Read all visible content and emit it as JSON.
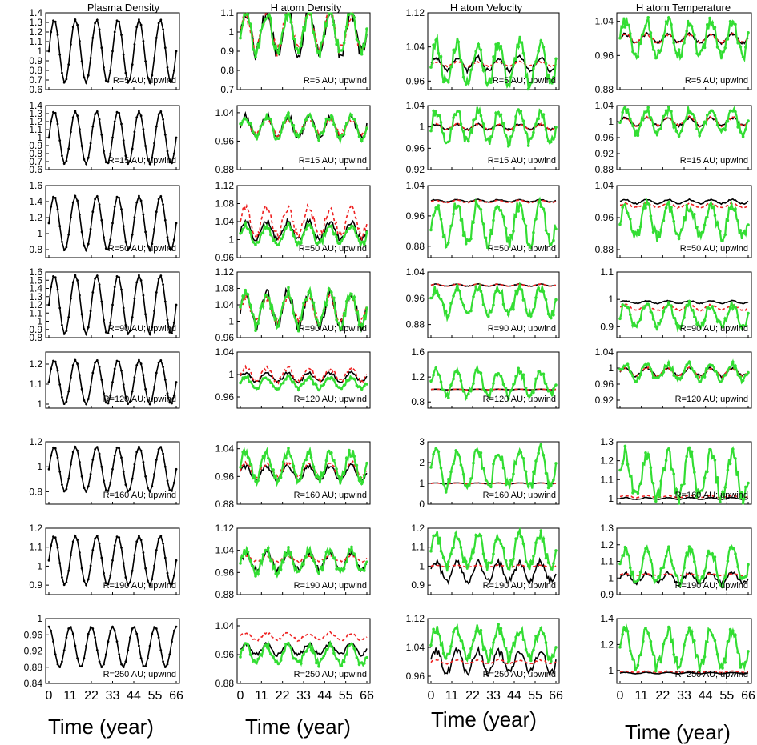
{
  "page": {
    "column_titles": [
      "Plasma Density",
      "H atom Density",
      "H atom Velocity",
      "H atom Temperature"
    ],
    "time_label": "Time (year)"
  },
  "chart_data": {
    "type": "line",
    "layout": "8 rows x 4 columns grid of line plots",
    "series_legend": [
      {
        "key": "black",
        "color": "#000000",
        "style": "solid"
      },
      {
        "key": "green",
        "color": "#33dd33",
        "style": "solid with markers"
      },
      {
        "key": "red",
        "color": "#ee2222",
        "style": "dashed"
      }
    ],
    "x_ticks": [
      "0",
      "11",
      "22",
      "33",
      "44",
      "55",
      "66"
    ],
    "xlim": [
      0,
      66
    ],
    "period_years": 11,
    "rows": [
      {
        "label": "R=5 AU; upwind",
        "panels": [
          {
            "ylim": [
              0.6,
              1.4
            ],
            "yticks": [
              "0.6",
              "0.7",
              "0.8",
              "0.9",
              "1",
              "1.1",
              "1.2",
              "1.3",
              "1.4"
            ],
            "series": {
              "black": {
                "amp": 0.33,
                "markers": true
              }
            }
          },
          {
            "ylim": [
              0.7,
              1.1
            ],
            "yticks": [
              "0.7",
              "0.8",
              "0.9",
              "1",
              "1.1"
            ],
            "series": {
              "black": {
                "amp": 0.11
              },
              "red": {
                "amp": 0.1
              },
              "green": {
                "amp": 0.1
              }
            }
          },
          {
            "ylim": [
              0.94,
              1.12
            ],
            "yticks": [
              "0.96",
              "1.04",
              "1.12"
            ],
            "series": {
              "black": {
                "amp": 0.015
              },
              "red": {
                "amp": 0.005
              },
              "green": {
                "amp": 0.05
              }
            }
          },
          {
            "ylim": [
              0.88,
              1.06
            ],
            "yticks": [
              "0.88",
              "0.96",
              "1.04"
            ],
            "series": {
              "black": {
                "amp": 0.01
              },
              "red": {
                "amp": 0.01
              },
              "green": {
                "amp": 0.04
              }
            }
          }
        ]
      },
      {
        "label": "R=15 AU; upwind",
        "panels": [
          {
            "ylim": [
              0.6,
              1.4
            ],
            "yticks": [
              "0.6",
              "0.7",
              "0.8",
              "0.9",
              "1",
              "1.1",
              "1.2",
              "1.3",
              "1.4"
            ],
            "series": {
              "black": {
                "amp": 0.33,
                "markers": true
              }
            }
          },
          {
            "ylim": [
              0.88,
              1.06
            ],
            "yticks": [
              "0.88",
              "0.96",
              "1.04"
            ],
            "series": {
              "black": {
                "amp": 0.03
              },
              "red": {
                "amp": 0.02
              },
              "green": {
                "amp": 0.03
              }
            }
          },
          {
            "ylim": [
              0.92,
              1.04
            ],
            "yticks": [
              "0.92",
              "0.96",
              "1",
              "1.04"
            ],
            "series": {
              "black": {
                "amp": 0.005
              },
              "red": {
                "amp": 0.005
              },
              "green": {
                "amp": 0.03
              }
            }
          },
          {
            "ylim": [
              0.88,
              1.04
            ],
            "yticks": [
              "0.88",
              "0.92",
              "0.96",
              "1",
              "1.04"
            ],
            "series": {
              "black": {
                "amp": 0.01
              },
              "red": {
                "amp": 0.01
              },
              "green": {
                "amp": 0.03
              }
            }
          }
        ]
      },
      {
        "label": "R=50 AU; upwind",
        "panels": [
          {
            "ylim": [
              0.7,
              1.6
            ],
            "yticks": [
              "0.8",
              "1",
              "1.2",
              "1.4",
              "1.6"
            ],
            "series": {
              "black": {
                "amp": 0.34,
                "center": 1.13,
                "markers": true
              }
            }
          },
          {
            "ylim": [
              0.96,
              1.12
            ],
            "yticks": [
              "0.96",
              "1",
              "1.04",
              "1.08",
              "1.12"
            ],
            "series": {
              "black": {
                "amp": 0.02,
                "center": 1.02
              },
              "red": {
                "amp": 0.03,
                "center": 1.04
              },
              "green": {
                "amp": 0.02,
                "center": 1.01
              }
            }
          },
          {
            "ylim": [
              0.85,
              1.04
            ],
            "yticks": [
              "0.88",
              "0.96",
              "1.04"
            ],
            "series": {
              "black": {
                "amp": 0.003,
                "center": 1.0
              },
              "red": {
                "amp": 0.003,
                "center": 0.998
              },
              "green": {
                "amp": 0.05,
                "center": 0.94
              }
            }
          },
          {
            "ylim": [
              0.86,
              1.04
            ],
            "yticks": [
              "0.88",
              "0.96",
              "1.04"
            ],
            "series": {
              "black": {
                "amp": 0.005,
                "center": 1.0
              },
              "red": {
                "amp": 0.005,
                "center": 0.99
              },
              "green": {
                "amp": 0.04,
                "center": 0.95
              }
            }
          }
        ]
      },
      {
        "label": "R=90 AU; upwind",
        "panels": [
          {
            "ylim": [
              0.8,
              1.6
            ],
            "yticks": [
              "0.8",
              "0.9",
              "1",
              "1.1",
              "1.2",
              "1.3",
              "1.4",
              "1.5",
              "1.6"
            ],
            "series": {
              "black": {
                "amp": 0.36,
                "center": 1.2,
                "markers": true
              }
            }
          },
          {
            "ylim": [
              0.96,
              1.12
            ],
            "yticks": [
              "0.96",
              "1",
              "1.04",
              "1.08",
              "1.12"
            ],
            "series": {
              "black": {
                "amp": 0.04,
                "center": 1.03
              },
              "red": {
                "amp": 0.03,
                "center": 1.03
              },
              "green": {
                "amp": 0.04,
                "center": 1.03
              }
            }
          },
          {
            "ylim": [
              0.84,
              1.04
            ],
            "yticks": [
              "0.88",
              "0.96",
              "1.04"
            ],
            "series": {
              "black": {
                "amp": 0.003,
                "center": 1.0
              },
              "red": {
                "amp": 0.003,
                "center": 1.0
              },
              "green": {
                "amp": 0.04,
                "center": 0.95
              }
            }
          },
          {
            "ylim": [
              0.86,
              1.1
            ],
            "yticks": [
              "0.9",
              "1",
              "1.1"
            ],
            "series": {
              "black": {
                "amp": 0.005,
                "center": 0.99
              },
              "red": {
                "amp": 0.01,
                "center": 0.97
              },
              "green": {
                "amp": 0.04,
                "center": 0.94
              }
            }
          }
        ]
      },
      {
        "label": "R=120 AU; upwind",
        "panels": [
          {
            "ylim": [
              0.98,
              1.26
            ],
            "yticks": [
              "1",
              "1.1",
              "1.2"
            ],
            "series": {
              "black": {
                "amp": 0.11,
                "center": 1.11,
                "markers": true
              }
            }
          },
          {
            "ylim": [
              0.94,
              1.04
            ],
            "yticks": [
              "0.96",
              "1",
              "1.04"
            ],
            "series": {
              "black": {
                "amp": 0.008,
                "center": 0.995
              },
              "red": {
                "amp": 0.012,
                "center": 1.0
              },
              "green": {
                "amp": 0.01,
                "center": 0.985
              }
            }
          },
          {
            "ylim": [
              0.7,
              1.6
            ],
            "yticks": [
              "0.8",
              "1.2",
              "1.6"
            ],
            "series": {
              "black": {
                "amp": 0.005,
                "center": 1.0
              },
              "red": {
                "amp": 0.005,
                "center": 1.0
              },
              "green": {
                "amp": 0.2,
                "center": 1.1
              }
            }
          },
          {
            "ylim": [
              0.9,
              1.04
            ],
            "yticks": [
              "0.92",
              "0.96",
              "1",
              "1.04"
            ],
            "series": {
              "black": {
                "amp": 0.01,
                "center": 0.99
              },
              "red": {
                "amp": 0.01,
                "center": 0.99
              },
              "green": {
                "amp": 0.02,
                "center": 0.99
              }
            }
          }
        ]
      },
      {
        "label": "R=160 AU; upwind",
        "panels": [
          {
            "ylim": [
              0.7,
              1.2
            ],
            "yticks": [
              "0.8",
              "1",
              "1.2"
            ],
            "series": {
              "black": {
                "amp": 0.18,
                "center": 0.98,
                "markers": true
              }
            }
          },
          {
            "ylim": [
              0.88,
              1.06
            ],
            "yticks": [
              "0.88",
              "0.96",
              "1.04"
            ],
            "series": {
              "black": {
                "amp": 0.02,
                "center": 0.97
              },
              "red": {
                "amp": 0.02,
                "center": 0.98
              },
              "green": {
                "amp": 0.04,
                "center": 0.99
              }
            }
          },
          {
            "ylim": [
              0,
              3
            ],
            "yticks": [
              "0",
              "1",
              "2",
              "3"
            ],
            "series": {
              "black": {
                "amp": 0.02,
                "center": 1.0
              },
              "red": {
                "amp": 0.02,
                "center": 1.0
              },
              "green": {
                "amp": 0.9,
                "center": 1.7
              }
            }
          },
          {
            "ylim": [
              0.97,
              1.3
            ],
            "yticks": [
              "1",
              "1.1",
              "1.2",
              "1.3"
            ],
            "series": {
              "black": {
                "amp": 0.005,
                "center": 1.0
              },
              "red": {
                "amp": 0.005,
                "center": 1.01
              },
              "green": {
                "amp": 0.12,
                "center": 1.12
              }
            }
          }
        ]
      },
      {
        "label": "R=190 AU; upwind",
        "panels": [
          {
            "ylim": [
              0.85,
              1.2
            ],
            "yticks": [
              "0.9",
              "1",
              "1.1",
              "1.2"
            ],
            "series": {
              "black": {
                "amp": 0.13,
                "center": 1.03,
                "markers": true
              }
            }
          },
          {
            "ylim": [
              0.88,
              1.12
            ],
            "yticks": [
              "0.88",
              "0.96",
              "1.04",
              "1.12"
            ],
            "series": {
              "black": {
                "amp": 0.03,
                "center": 1.0
              },
              "red": {
                "amp": 0.01,
                "center": 1.01
              },
              "green": {
                "amp": 0.04,
                "center": 1.0
              }
            }
          },
          {
            "ylim": [
              0.85,
              1.2
            ],
            "yticks": [
              "0.9",
              "1",
              "1.1",
              "1.2"
            ],
            "series": {
              "black": {
                "amp": 0.05,
                "center": 0.97
              },
              "red": {
                "amp": 0.005,
                "center": 1.0
              },
              "green": {
                "amp": 0.09,
                "center": 1.08
              }
            }
          },
          {
            "ylim": [
              0.9,
              1.3
            ],
            "yticks": [
              "0.9",
              "1",
              "1.1",
              "1.2",
              "1.3"
            ],
            "series": {
              "black": {
                "amp": 0.03,
                "center": 1.0
              },
              "red": {
                "amp": 0.005,
                "center": 1.02
              },
              "green": {
                "amp": 0.1,
                "center": 1.07
              }
            }
          }
        ]
      },
      {
        "label": "R=250 AU; upwind",
        "panels": [
          {
            "ylim": [
              0.84,
              1.0
            ],
            "yticks": [
              "0.84",
              "0.88",
              "0.92",
              "0.96",
              "1"
            ],
            "series": {
              "black": {
                "amp": 0.05,
                "center": 0.93,
                "phase": 1.57,
                "markers": true
              }
            }
          },
          {
            "ylim": [
              0.88,
              1.06
            ],
            "yticks": [
              "0.88",
              "0.96",
              "1.04"
            ],
            "series": {
              "black": {
                "amp": 0.015,
                "center": 0.975
              },
              "red": {
                "amp": 0.01,
                "center": 1.01
              },
              "green": {
                "amp": 0.025,
                "center": 0.96
              }
            }
          },
          {
            "ylim": [
              0.94,
              1.12
            ],
            "yticks": [
              "0.96",
              "1.04",
              "1.12"
            ],
            "series": {
              "black": {
                "amp": 0.03,
                "center": 1.0
              },
              "red": {
                "amp": 0.005,
                "center": 1.0
              },
              "green": {
                "amp": 0.04,
                "center": 1.05
              }
            }
          },
          {
            "ylim": [
              0.9,
              1.4
            ],
            "yticks": [
              "1",
              "1.2",
              "1.4"
            ],
            "series": {
              "black": {
                "amp": 0.005,
                "center": 0.98
              },
              "red": {
                "amp": 0.005,
                "center": 0.99
              },
              "green": {
                "amp": 0.14,
                "center": 1.17
              }
            }
          }
        ]
      }
    ]
  }
}
